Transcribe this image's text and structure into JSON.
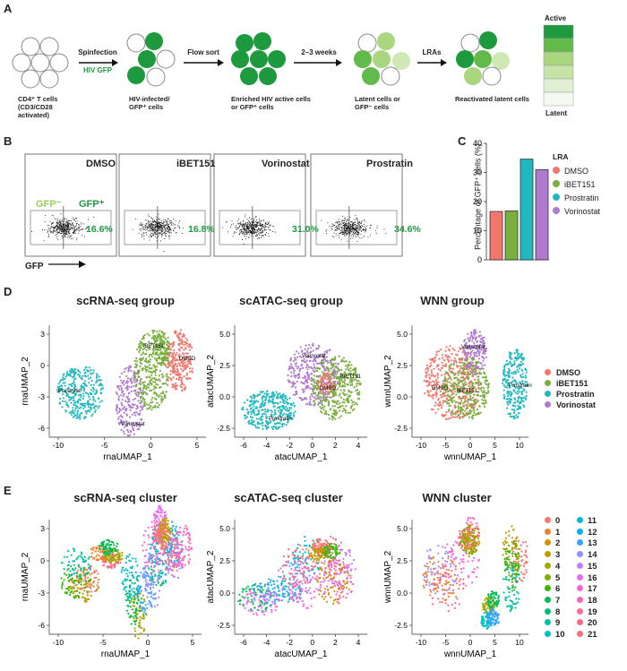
{
  "panels": {
    "a": "A",
    "b": "B",
    "c": "C",
    "d": "D",
    "e": "E"
  },
  "colors": {
    "green_dark": "#1e9a3e",
    "green_mid": "#62ba4a",
    "green_light": "#a9d67f",
    "green_pale": "#cfe8b4",
    "dmso": "#f0766e",
    "ibet": "#7aae3e",
    "prostratin": "#21b9bf",
    "vorinostat": "#b07ad0"
  },
  "panel_a": {
    "steps": [
      {
        "arrow": "Spinfection",
        "sub": "HIV GFP"
      },
      {
        "arrow": "Flow sort",
        "sub": ""
      },
      {
        "arrow": "2–3 weeks",
        "sub": ""
      },
      {
        "arrow": "LRAs",
        "sub": ""
      }
    ],
    "cell_labels": [
      [
        "CD4⁺ T cells",
        "(CD3/CD28",
        "activated)"
      ],
      [
        "HIV-infected/",
        "GFP⁺ cells"
      ],
      [
        "Enriched HIV active cells",
        "or GFP⁺ cells"
      ],
      [
        "Latent cells or",
        "GFP⁻ cells"
      ],
      [
        "Reactivated latent cells"
      ]
    ],
    "legend_top": "Active",
    "legend_bottom": "Latent"
  },
  "panel_b": {
    "gfp_neg": "GFP⁻",
    "gfp_pos": "GFP⁺",
    "axis_label": "GFP",
    "plots": [
      {
        "name": "DMSO",
        "percent": "16.6%"
      },
      {
        "name": "iBET151",
        "percent": "16.8%"
      },
      {
        "name": "Vorinostat",
        "percent": "31.0%"
      },
      {
        "name": "Prostratin",
        "percent": "34.6%"
      }
    ]
  },
  "chart_data": [
    {
      "type": "bar",
      "title": "",
      "ylabel": "Percentage of GFP⁺ cells (%)",
      "xlabel": "",
      "categories": [
        "DMSO",
        "iBET151",
        "Prostratin",
        "Vorinostat"
      ],
      "values": [
        16.6,
        16.8,
        34.6,
        31.0
      ],
      "ylim": [
        0,
        40
      ],
      "yticks": [
        "0",
        "10",
        "20",
        "30",
        "40"
      ],
      "legend_title": "LRA",
      "legend_position": "right"
    }
  ],
  "panel_d": {
    "plots": [
      {
        "title": "scRNA-seq group",
        "xlabel": "rnaUMAP_1",
        "ylabel": "rnaUMAP_2",
        "xticks": [
          "-10",
          "-5",
          "0",
          "5"
        ],
        "yticks": [
          "3",
          "0",
          "-3",
          "-6"
        ],
        "labels": [
          "iBET151",
          "DMSO",
          "Prostratin",
          "Vorinostat"
        ]
      },
      {
        "title": "scATAC-seq group",
        "xlabel": "atacUMAP_1",
        "ylabel": "atacUMAP_2",
        "xticks": [
          "-6",
          "-4",
          "-2",
          "0",
          "2",
          "4"
        ],
        "yticks": [
          "5.0",
          "2.5",
          "0.0",
          "-2.5"
        ],
        "labels": [
          "Vorinostat",
          "iBET151",
          "DMSO",
          "Prostratin"
        ]
      },
      {
        "title": "WNN group",
        "xlabel": "wnnUMAP_1",
        "ylabel": "wnnUMAP_2",
        "xticks": [
          "-10",
          "-5",
          "0",
          "5",
          "10"
        ],
        "yticks": [
          "5.0",
          "2.5",
          "0.0",
          "-2.5"
        ],
        "labels": [
          "Vorinostat",
          "DMSO",
          "iBET151",
          "Prostratin"
        ]
      }
    ],
    "legend": [
      "DMSO",
      "iBET151",
      "Prostratin",
      "Vorinostat"
    ]
  },
  "panel_e": {
    "plots": [
      {
        "title": "scRNA-seq cluster",
        "xlabel": "rnaUMAP_1",
        "ylabel": "rnaUMAP_2",
        "xticks": [
          "-10",
          "-5",
          "0",
          "5"
        ],
        "yticks": [
          "3",
          "0",
          "-3",
          "-6"
        ]
      },
      {
        "title": "scATAC-seq cluster",
        "xlabel": "atacUMAP_1",
        "ylabel": "atacUMAP_2",
        "xticks": [
          "-6",
          "-4",
          "-2",
          "0",
          "2",
          "4"
        ],
        "yticks": [
          "5.0",
          "2.5",
          "0.0",
          "-2.5"
        ]
      },
      {
        "title": "WNN cluster",
        "xlabel": "wnnUMAP_1",
        "ylabel": "wnnUMAP_2",
        "xticks": [
          "-10",
          "-5",
          "0",
          "5",
          "10"
        ],
        "yticks": [
          "5.0",
          "2.5",
          "0.0",
          "-2.5"
        ]
      }
    ],
    "clusters": [
      "0",
      "1",
      "2",
      "3",
      "4",
      "5",
      "6",
      "7",
      "8",
      "9",
      "10",
      "11",
      "12",
      "13",
      "14",
      "15",
      "16",
      "17",
      "18",
      "19",
      "20",
      "21"
    ],
    "cluster_colors": [
      "#f8766d",
      "#ea8331",
      "#d89000",
      "#c09b00",
      "#a3a500",
      "#7cae00",
      "#39b600",
      "#00bb4e",
      "#00bf7d",
      "#00c1a3",
      "#00bfc4",
      "#00bae0",
      "#00b0f6",
      "#35a2ff",
      "#9590ff",
      "#c77cff",
      "#e76bf3",
      "#fa62db",
      "#ff62bc",
      "#ff6a98",
      "#ff6a80",
      "#f5707c"
    ]
  }
}
